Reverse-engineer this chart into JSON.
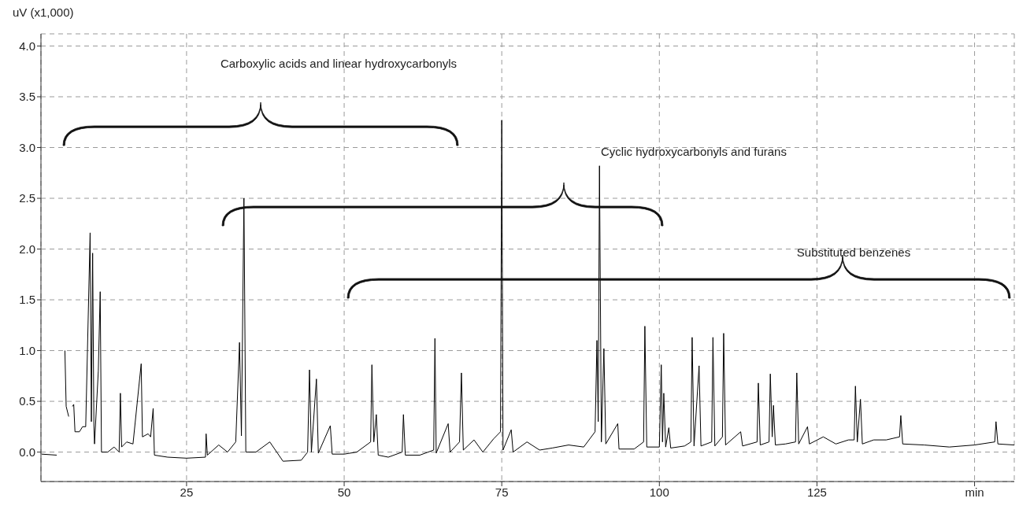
{
  "chart_data": {
    "type": "line",
    "ylabel": "uV (x1,000)",
    "color": "#000000",
    "x": [
      2,
      4.4,
      4.7,
      5.6,
      5.7,
      5.9,
      6.3,
      6.7,
      6.9,
      7.1,
      7.3,
      8.0,
      8.5,
      9.0,
      9.7,
      9.9,
      10.1,
      10.3,
      10.4,
      11.0,
      11.3,
      11.5,
      12.5,
      13.5,
      14.3,
      14.5,
      14.7,
      15.5,
      16.5,
      17.8,
      18.0,
      18.9,
      19.3,
      19.7,
      19.9,
      22,
      25,
      28.0,
      28.1,
      28.3,
      30.1,
      31.5,
      32.8,
      33.4,
      33.7,
      34.1,
      34.4,
      36,
      38.2,
      40.3,
      43.2,
      44.2,
      44.5,
      44.8,
      45.6,
      45.9,
      47.8,
      48.1,
      50,
      52,
      54.2,
      54.4,
      54.7,
      55.1,
      55.4,
      57,
      59.2,
      59.4,
      59.7,
      62,
      64.2,
      64.4,
      64.6,
      66.5,
      66.8,
      68.3,
      68.6,
      68.9,
      70.6,
      72,
      73.7,
      74.8,
      75.0,
      75.2,
      76.5,
      76.8,
      79.0,
      81,
      83,
      85.6,
      88,
      89.8,
      90.1,
      90.3,
      90.5,
      90.8,
      91.2,
      91.5,
      93.4,
      93.6,
      96,
      97.5,
      97.7,
      98.0,
      100.0,
      100.3,
      100.5,
      100.7,
      101.0,
      101.5,
      101.8,
      104,
      105.0,
      105.2,
      105.5,
      106.3,
      106.6,
      108.3,
      108.5,
      108.8,
      110.0,
      110.2,
      110.5,
      112.9,
      113.2,
      115.5,
      115.7,
      116.0,
      117.4,
      117.6,
      117.9,
      118.1,
      118.4,
      120,
      121.6,
      121.8,
      122.1,
      123.5,
      123.8,
      126,
      128,
      130,
      130.9,
      131.1,
      131.4,
      131.9,
      132.2,
      134,
      136,
      138.1,
      138.3,
      138.6,
      142,
      146,
      150,
      153.2,
      153.4,
      153.7,
      156.3
    ],
    "values": [
      -0.02,
      -0.03,
      null,
      null,
      1.0,
      0.45,
      0.35,
      null,
      0.45,
      0.47,
      0.2,
      0.2,
      0.25,
      0.25,
      2.16,
      0.3,
      1.96,
      0.26,
      0.08,
      0.8,
      1.58,
      0.0,
      0.0,
      0.05,
      0.0,
      0.58,
      0.05,
      0.1,
      0.08,
      0.87,
      0.15,
      0.18,
      0.15,
      0.43,
      -0.03,
      -0.05,
      -0.06,
      -0.05,
      0.18,
      -0.03,
      0.07,
      0.0,
      0.1,
      1.08,
      0.16,
      2.5,
      0.0,
      0.0,
      0.1,
      -0.09,
      -0.08,
      0.0,
      0.81,
      0.0,
      0.72,
      -0.01,
      0.26,
      -0.02,
      -0.02,
      0.0,
      0.1,
      0.86,
      0.1,
      0.37,
      -0.03,
      -0.05,
      0.0,
      0.37,
      -0.03,
      -0.03,
      0.02,
      1.12,
      -0.01,
      0.28,
      0.0,
      0.1,
      0.78,
      0.02,
      0.12,
      0.0,
      0.13,
      0.2,
      3.27,
      0.02,
      0.22,
      0.0,
      0.1,
      0.02,
      0.04,
      0.07,
      0.05,
      0.2,
      1.1,
      0.3,
      2.82,
      0.1,
      1.02,
      0.08,
      0.28,
      0.03,
      0.03,
      0.1,
      1.24,
      0.05,
      0.05,
      0.86,
      0.1,
      0.58,
      0.05,
      0.24,
      0.04,
      0.06,
      0.1,
      1.13,
      0.06,
      0.85,
      0.06,
      0.1,
      1.13,
      0.06,
      0.15,
      1.17,
      0.07,
      0.2,
      0.06,
      0.1,
      0.68,
      0.07,
      0.1,
      0.77,
      0.15,
      0.46,
      0.07,
      0.08,
      0.1,
      0.78,
      0.08,
      0.25,
      0.08,
      0.15,
      0.08,
      0.12,
      0.12,
      0.65,
      0.1,
      0.52,
      0.08,
      0.12,
      0.12,
      0.15,
      0.36,
      0.08,
      0.07,
      0.05,
      0.07,
      0.1,
      0.3,
      0.08,
      0.07
    ],
    "xlim": [
      1.9,
      156.3
    ],
    "ylim": [
      -0.29,
      4.12
    ],
    "xticks": [
      25,
      50,
      75,
      100,
      125,
      {
        "value": 150,
        "label": "min"
      }
    ],
    "yticks": [
      {
        "value": 0,
        "label": "0.0"
      },
      0.5,
      {
        "value": 1,
        "label": "1.0"
      },
      1.5,
      {
        "value": 2,
        "label": "2.0"
      },
      2.5,
      {
        "value": 3,
        "label": "3.0"
      },
      3.5,
      {
        "value": 4,
        "label": "4.0"
      }
    ],
    "grid": true,
    "annotations": [
      "Carboxylic acids and linear hydroxycarbonyls",
      "Cyclic hydroxycarbonyls and furans",
      "Substituted benzenes"
    ]
  }
}
